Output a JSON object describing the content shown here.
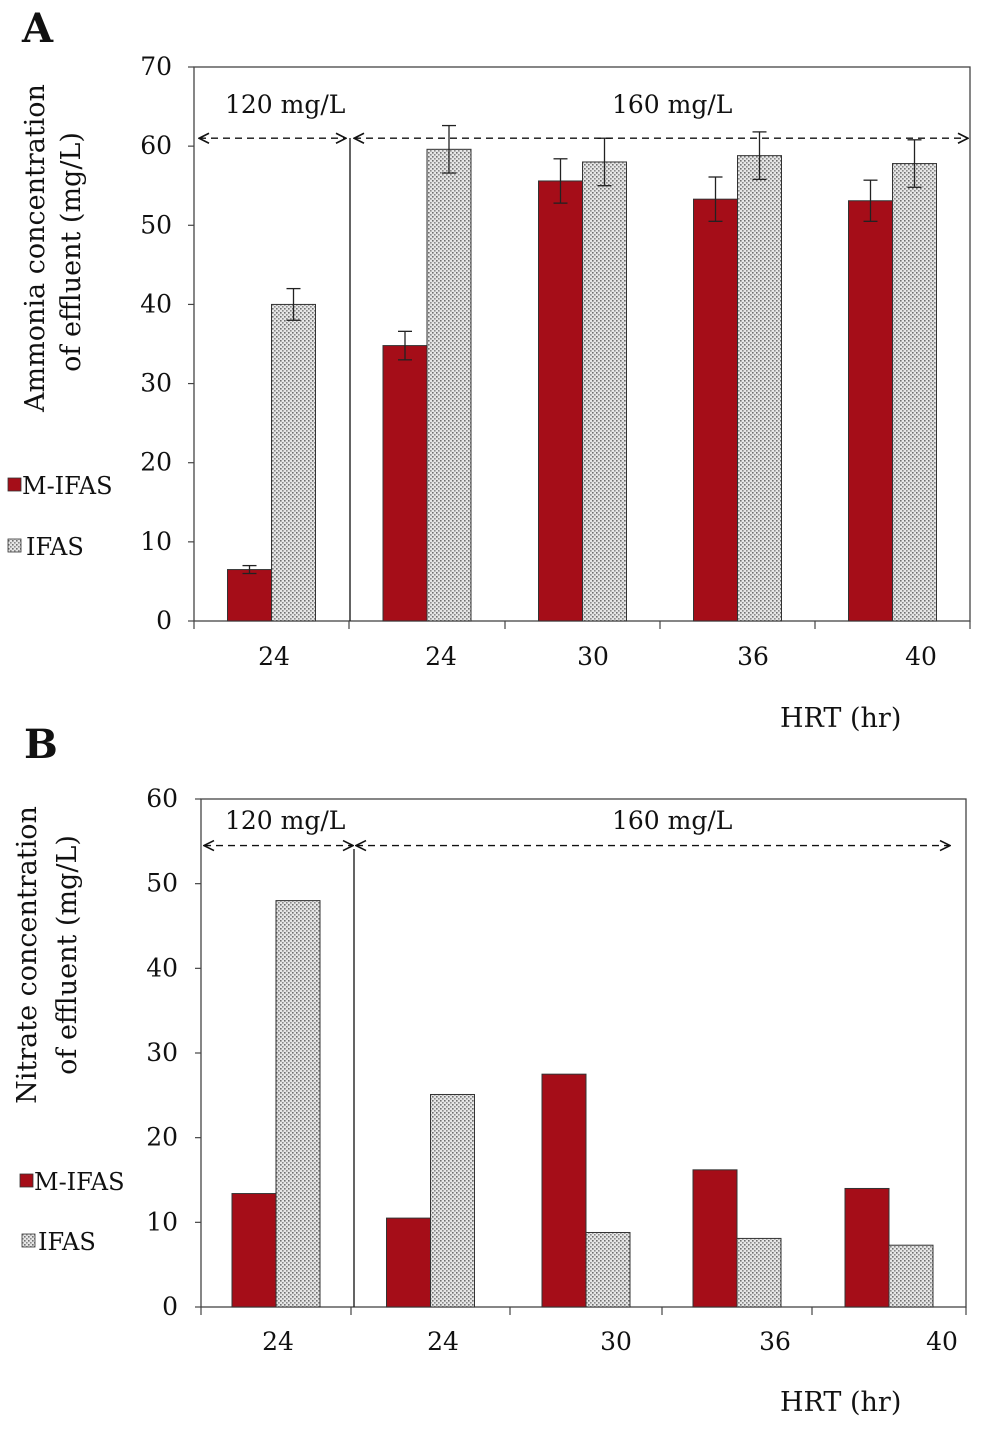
{
  "chart_data": [
    {
      "panel": "A",
      "type": "bar",
      "categories": [
        "24",
        "24",
        "30",
        "36",
        "40"
      ],
      "series": [
        {
          "name": "M-IFAS",
          "values": [
            6.5,
            34.8,
            55.6,
            53.3,
            53.1
          ],
          "errors": [
            0.5,
            1.8,
            2.8,
            2.8,
            2.6
          ],
          "color": "#a50d18"
        },
        {
          "name": "IFAS",
          "values": [
            40.0,
            59.6,
            58.0,
            58.8,
            57.8
          ],
          "errors": [
            2.0,
            3.0,
            3.0,
            3.0,
            3.0
          ],
          "color": "#d9d9d9"
        }
      ],
      "ylim": [
        0,
        70
      ],
      "yticks": [
        "0",
        "10",
        "20",
        "30",
        "40",
        "50",
        "60",
        "70"
      ],
      "ylabel_line1": "Ammonia concentration",
      "ylabel_line2": "of effluent (mg/L)",
      "xlabel": "HRT (hr)",
      "annotations": [
        "120 mg/L",
        "160 mg/L"
      ],
      "annotation_y": 61,
      "divider_after_index": 0,
      "legend_position": "left"
    },
    {
      "panel": "B",
      "type": "bar",
      "categories": [
        "24",
        "24",
        "30",
        "36",
        "40"
      ],
      "series": [
        {
          "name": "M-IFAS",
          "values": [
            13.4,
            10.5,
            27.5,
            16.2,
            14.0
          ],
          "color": "#a50d18"
        },
        {
          "name": "IFAS",
          "values": [
            48.0,
            25.1,
            8.8,
            8.1,
            7.3
          ],
          "color": "#d9d9d9"
        }
      ],
      "ylim": [
        0,
        60
      ],
      "yticks": [
        "0",
        "10",
        "20",
        "30",
        "40",
        "50",
        "60"
      ],
      "ylabel_line1": "Nitrate concentration",
      "ylabel_line2": "of effluent (mg/L)",
      "xlabel": "HRT (hr)",
      "annotations": [
        "120 mg/L",
        "160 mg/L"
      ],
      "annotation_y": 54.5,
      "divider_after_index": 0,
      "legend_position": "left"
    }
  ]
}
